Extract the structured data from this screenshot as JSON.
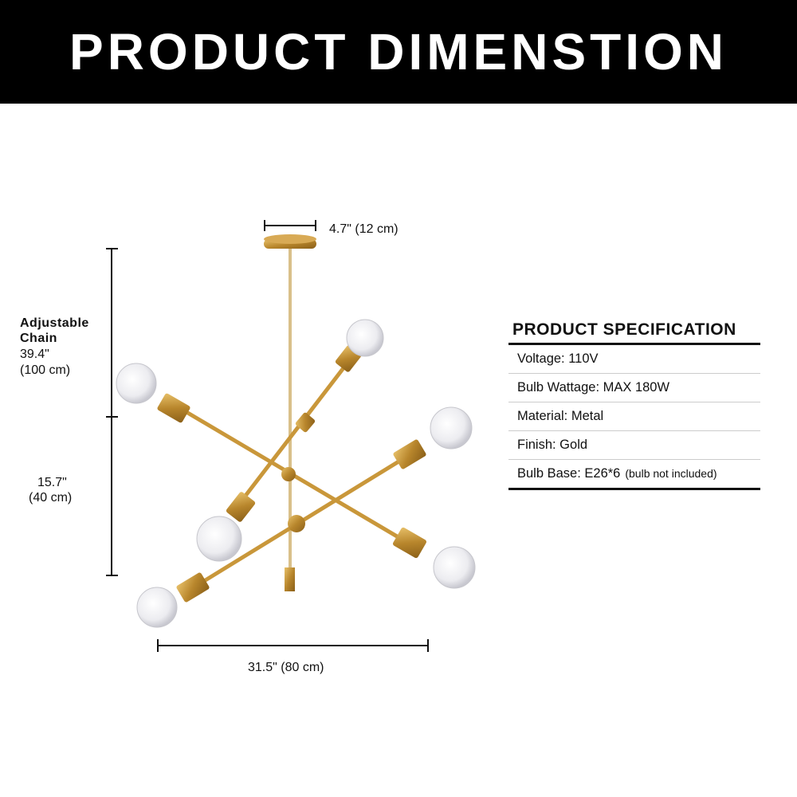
{
  "header": {
    "title": "PRODUCT DIMENSTION"
  },
  "dimensions": {
    "canopy_width": "4.7\" (12 cm)",
    "chain_label_line1": "Adjustable",
    "chain_label_line2": "Chain",
    "chain_length_in": "39.4\"",
    "chain_length_cm": "(100 cm)",
    "body_height_in": "15.7\"",
    "body_height_cm": "(40 cm)",
    "width": "31.5\" (80 cm)"
  },
  "specification": {
    "title": "PRODUCT SPECIFICATION",
    "rows": [
      {
        "text": "Voltage:  110V",
        "note": ""
      },
      {
        "text": "Bulb Wattage: MAX 180W",
        "note": ""
      },
      {
        "text": "Material: Metal",
        "note": ""
      },
      {
        "text": "Finish:  Gold",
        "note": ""
      },
      {
        "text": "Bulb Base: E26*6",
        "note": "(bulb not included)"
      }
    ]
  },
  "colors": {
    "banner": "#000000",
    "gold": "#c9973a",
    "bulb": "#ececf0"
  }
}
